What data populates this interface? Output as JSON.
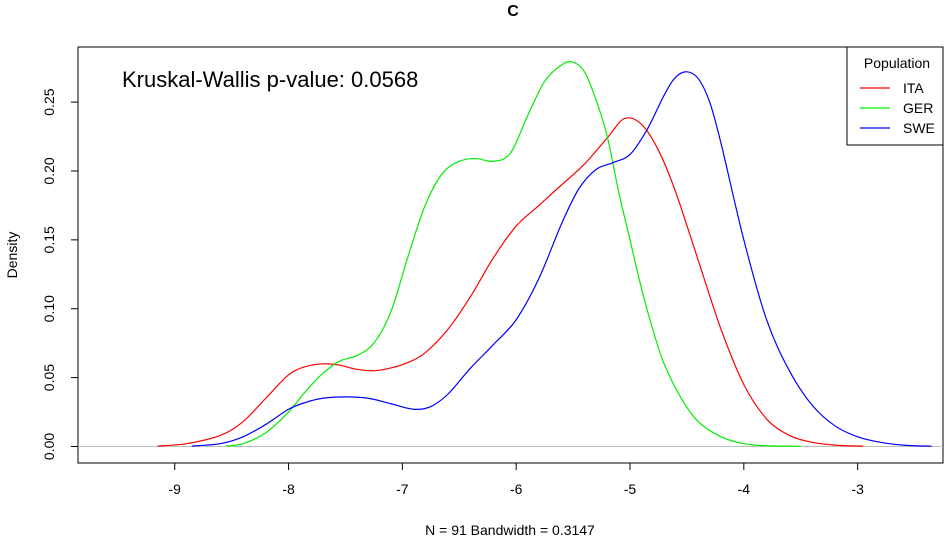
{
  "chart_data": {
    "type": "line",
    "title": "C",
    "xlabel": "N = 91   Bandwidth = 0.3147",
    "ylabel": "Density",
    "xlim": [
      -9.85,
      -2.25
    ],
    "ylim": [
      -0.012,
      0.29
    ],
    "x_ticks": [
      -9,
      -8,
      -7,
      -6,
      -5,
      -4,
      -3
    ],
    "x_tick_labels": [
      "-9",
      "-8",
      "-7",
      "-6",
      "-5",
      "-4",
      "-3"
    ],
    "y_ticks": [
      0.0,
      0.05,
      0.1,
      0.15,
      0.2,
      0.25
    ],
    "y_tick_labels": [
      "0.00",
      "0.05",
      "0.10",
      "0.15",
      "0.20",
      "0.25"
    ],
    "grid": false,
    "baseline": 0,
    "annotation": "Kruskal-Wallis p-value: 0.0568",
    "legend": {
      "title": "Population",
      "position": "top-right"
    },
    "series": [
      {
        "name": "ITA",
        "color": "#ff0000",
        "x": [
          -9.15,
          -8.9,
          -8.6,
          -8.4,
          -8.2,
          -8.0,
          -7.85,
          -7.7,
          -7.55,
          -7.4,
          -7.25,
          -7.1,
          -6.95,
          -6.8,
          -6.6,
          -6.4,
          -6.2,
          -6.0,
          -5.8,
          -5.6,
          -5.4,
          -5.2,
          -5.05,
          -4.9,
          -4.75,
          -4.6,
          -4.4,
          -4.2,
          -4.0,
          -3.8,
          -3.6,
          -3.4,
          -3.2,
          -2.95
        ],
        "y": [
          0.0003,
          0.002,
          0.008,
          0.018,
          0.035,
          0.052,
          0.058,
          0.06,
          0.059,
          0.056,
          0.055,
          0.057,
          0.061,
          0.068,
          0.085,
          0.109,
          0.137,
          0.16,
          0.175,
          0.19,
          0.205,
          0.224,
          0.238,
          0.234,
          0.215,
          0.185,
          0.135,
          0.085,
          0.045,
          0.02,
          0.008,
          0.003,
          0.001,
          0.0002
        ]
      },
      {
        "name": "GER",
        "color": "#00ee00",
        "x": [
          -8.55,
          -8.4,
          -8.2,
          -8.0,
          -7.85,
          -7.7,
          -7.55,
          -7.4,
          -7.25,
          -7.1,
          -6.95,
          -6.8,
          -6.65,
          -6.5,
          -6.35,
          -6.2,
          -6.05,
          -5.9,
          -5.75,
          -5.6,
          -5.5,
          -5.4,
          -5.3,
          -5.2,
          -5.1,
          -5.0,
          -4.9,
          -4.8,
          -4.7,
          -4.55,
          -4.4,
          -4.2,
          -4.0,
          -3.8,
          -3.5
        ],
        "y": [
          0.0003,
          0.002,
          0.01,
          0.025,
          0.04,
          0.053,
          0.062,
          0.066,
          0.075,
          0.098,
          0.138,
          0.175,
          0.198,
          0.207,
          0.209,
          0.207,
          0.213,
          0.24,
          0.265,
          0.277,
          0.279,
          0.272,
          0.252,
          0.225,
          0.185,
          0.15,
          0.115,
          0.085,
          0.06,
          0.035,
          0.018,
          0.007,
          0.002,
          0.0005,
          0.0001
        ]
      },
      {
        "name": "SWE",
        "color": "#0000ff",
        "x": [
          -8.85,
          -8.6,
          -8.4,
          -8.2,
          -8.0,
          -7.85,
          -7.7,
          -7.5,
          -7.3,
          -7.1,
          -6.9,
          -6.75,
          -6.6,
          -6.4,
          -6.2,
          -6.0,
          -5.8,
          -5.6,
          -5.45,
          -5.3,
          -5.15,
          -5.0,
          -4.85,
          -4.7,
          -4.6,
          -4.5,
          -4.4,
          -4.3,
          -4.2,
          -4.0,
          -3.8,
          -3.6,
          -3.4,
          -3.2,
          -3.0,
          -2.8,
          -2.6,
          -2.35
        ],
        "y": [
          0.0003,
          0.002,
          0.007,
          0.016,
          0.027,
          0.032,
          0.035,
          0.036,
          0.035,
          0.031,
          0.027,
          0.029,
          0.038,
          0.057,
          0.074,
          0.092,
          0.122,
          0.162,
          0.187,
          0.201,
          0.206,
          0.212,
          0.23,
          0.255,
          0.268,
          0.272,
          0.267,
          0.25,
          0.22,
          0.15,
          0.092,
          0.055,
          0.03,
          0.015,
          0.007,
          0.003,
          0.001,
          0.0002
        ]
      }
    ]
  }
}
